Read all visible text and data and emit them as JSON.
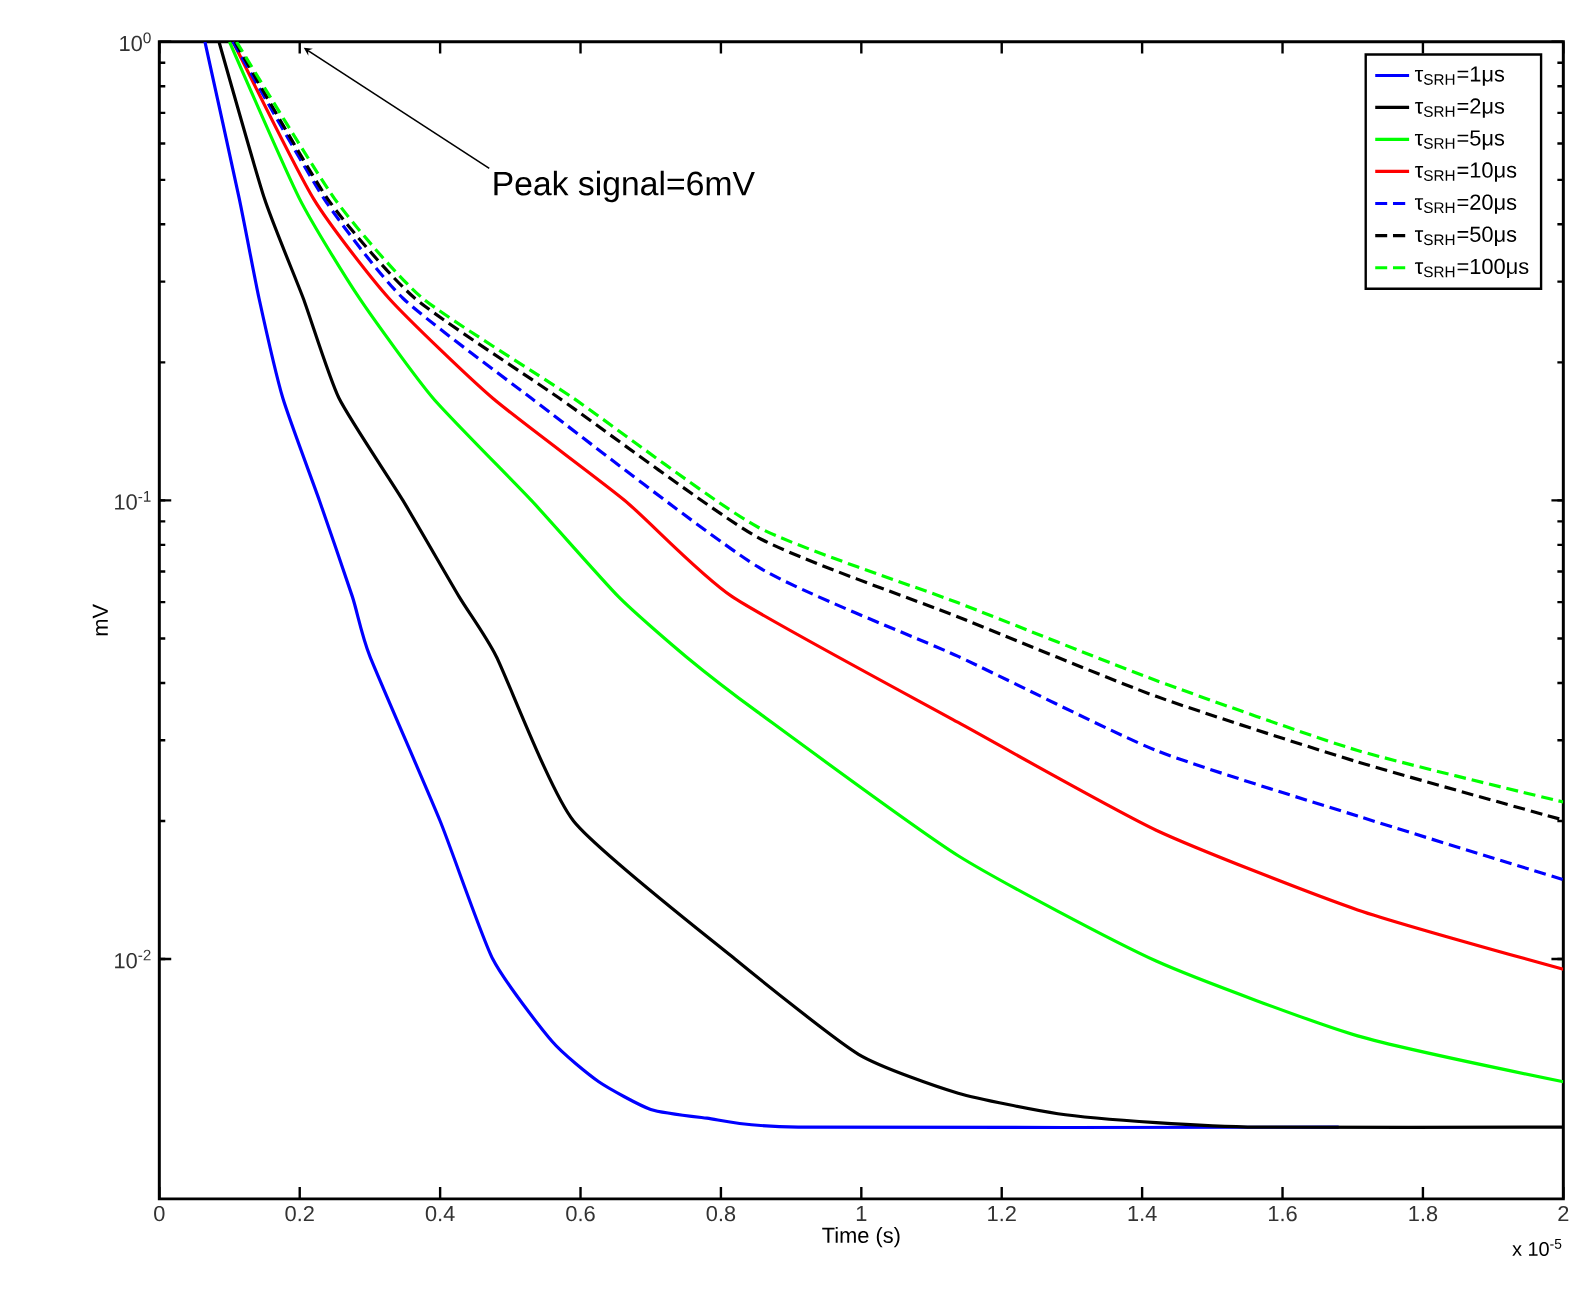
{
  "chart_data": {
    "type": "line",
    "xlabel": "Time (s)",
    "ylabel": "mV",
    "log": "y",
    "legend": "top right",
    "xlim": [
      0,
      2
    ],
    "ylim": [
      0.003,
      1
    ],
    "xticks": [
      0,
      0.2,
      0.4,
      0.6,
      0.8,
      1,
      1.2,
      1.4,
      1.6,
      1.8,
      2
    ],
    "yticks": [
      {
        "value": 0.01,
        "label": "10$^{-2}$"
      },
      {
        "value": 0.1,
        "label": "10$^{-1}$"
      },
      {
        "value": 1,
        "label": "10$^{0}$"
      }
    ],
    "annotations": [
      "Peak signal=6mV",
      "x 10$^{-5}$"
    ],
    "series": [
      {
        "name": "τ$_{SRH}$=1μs",
        "color": "#0000ff",
        "line_style": "solid",
        "x": [
          0.065,
          0.114,
          0.142,
          0.176,
          0.228,
          0.275,
          0.3,
          0.4,
          0.475,
          0.56,
          0.626,
          0.7,
          0.78,
          0.91,
          1.68
        ],
        "values": [
          1,
          0.454,
          0.276,
          0.167,
          0.1,
          0.0617,
          0.0457,
          0.02,
          0.01,
          0.0066,
          0.0054,
          0.0047,
          0.0045,
          0.0043,
          0.0043
        ]
      },
      {
        "name": "τ$_{SRH}$=2μs",
        "color": "#000000",
        "line_style": "solid",
        "x": [
          0.085,
          0.15,
          0.205,
          0.256,
          0.347,
          0.427,
          0.48,
          0.59,
          0.82,
          0.996,
          1.138,
          1.28,
          1.42,
          1.565,
          2
        ],
        "values": [
          1,
          0.454,
          0.276,
          0.167,
          0.1,
          0.0617,
          0.0457,
          0.02,
          0.01,
          0.0062,
          0.0051,
          0.0046,
          0.0044,
          0.0043,
          0.0043
        ]
      },
      {
        "name": "τ$_{SRH}$=5μs",
        "color": "#00ff00",
        "line_style": "solid",
        "x": [
          0.1,
          0.2,
          0.285,
          0.39,
          0.53,
          0.654,
          0.75,
          0.853,
          1.138,
          1.42,
          1.707,
          2
        ],
        "values": [
          1,
          0.454,
          0.276,
          0.167,
          0.1,
          0.0617,
          0.0457,
          0.0345,
          0.0168,
          0.0099,
          0.0068,
          0.0054
        ]
      },
      {
        "name": "τ$_{SRH}$=10μs",
        "color": "#ff0000",
        "line_style": "solid",
        "x": [
          0.105,
          0.22,
          0.327,
          0.475,
          0.663,
          0.816,
          1.138,
          1.42,
          1.707,
          2
        ],
        "values": [
          1,
          0.454,
          0.276,
          0.167,
          0.1,
          0.0617,
          0.0328,
          0.0191,
          0.0128,
          0.0095
        ]
      },
      {
        "name": "τ$_{SRH}$=20μs",
        "color": "#0000ff",
        "line_style": "dashed",
        "x": [
          0.105,
          0.235,
          0.347,
          0.53,
          0.853,
          1.138,
          1.42,
          1.707,
          2
        ],
        "values": [
          1,
          0.454,
          0.276,
          0.167,
          0.0716,
          0.0457,
          0.0285,
          0.0205,
          0.0149
        ]
      },
      {
        "name": "τ$_{SRH}$=50μs",
        "color": "#000000",
        "line_style": "dashed",
        "x": [
          0.108,
          0.24,
          0.364,
          0.57,
          0.853,
          1.138,
          1.42,
          1.707,
          2
        ],
        "values": [
          1,
          0.454,
          0.276,
          0.167,
          0.083,
          0.0557,
          0.0374,
          0.0269,
          0.0201
        ]
      },
      {
        "name": "τ$_{SRH}$=100μs",
        "color": "#00ff00",
        "line_style": "dashed",
        "x": [
          0.11,
          0.25,
          0.375,
          0.59,
          0.853,
          1.138,
          1.42,
          1.707,
          2
        ],
        "values": [
          1,
          0.454,
          0.276,
          0.167,
          0.0874,
          0.0598,
          0.0405,
          0.0285,
          0.022
        ]
      }
    ]
  }
}
